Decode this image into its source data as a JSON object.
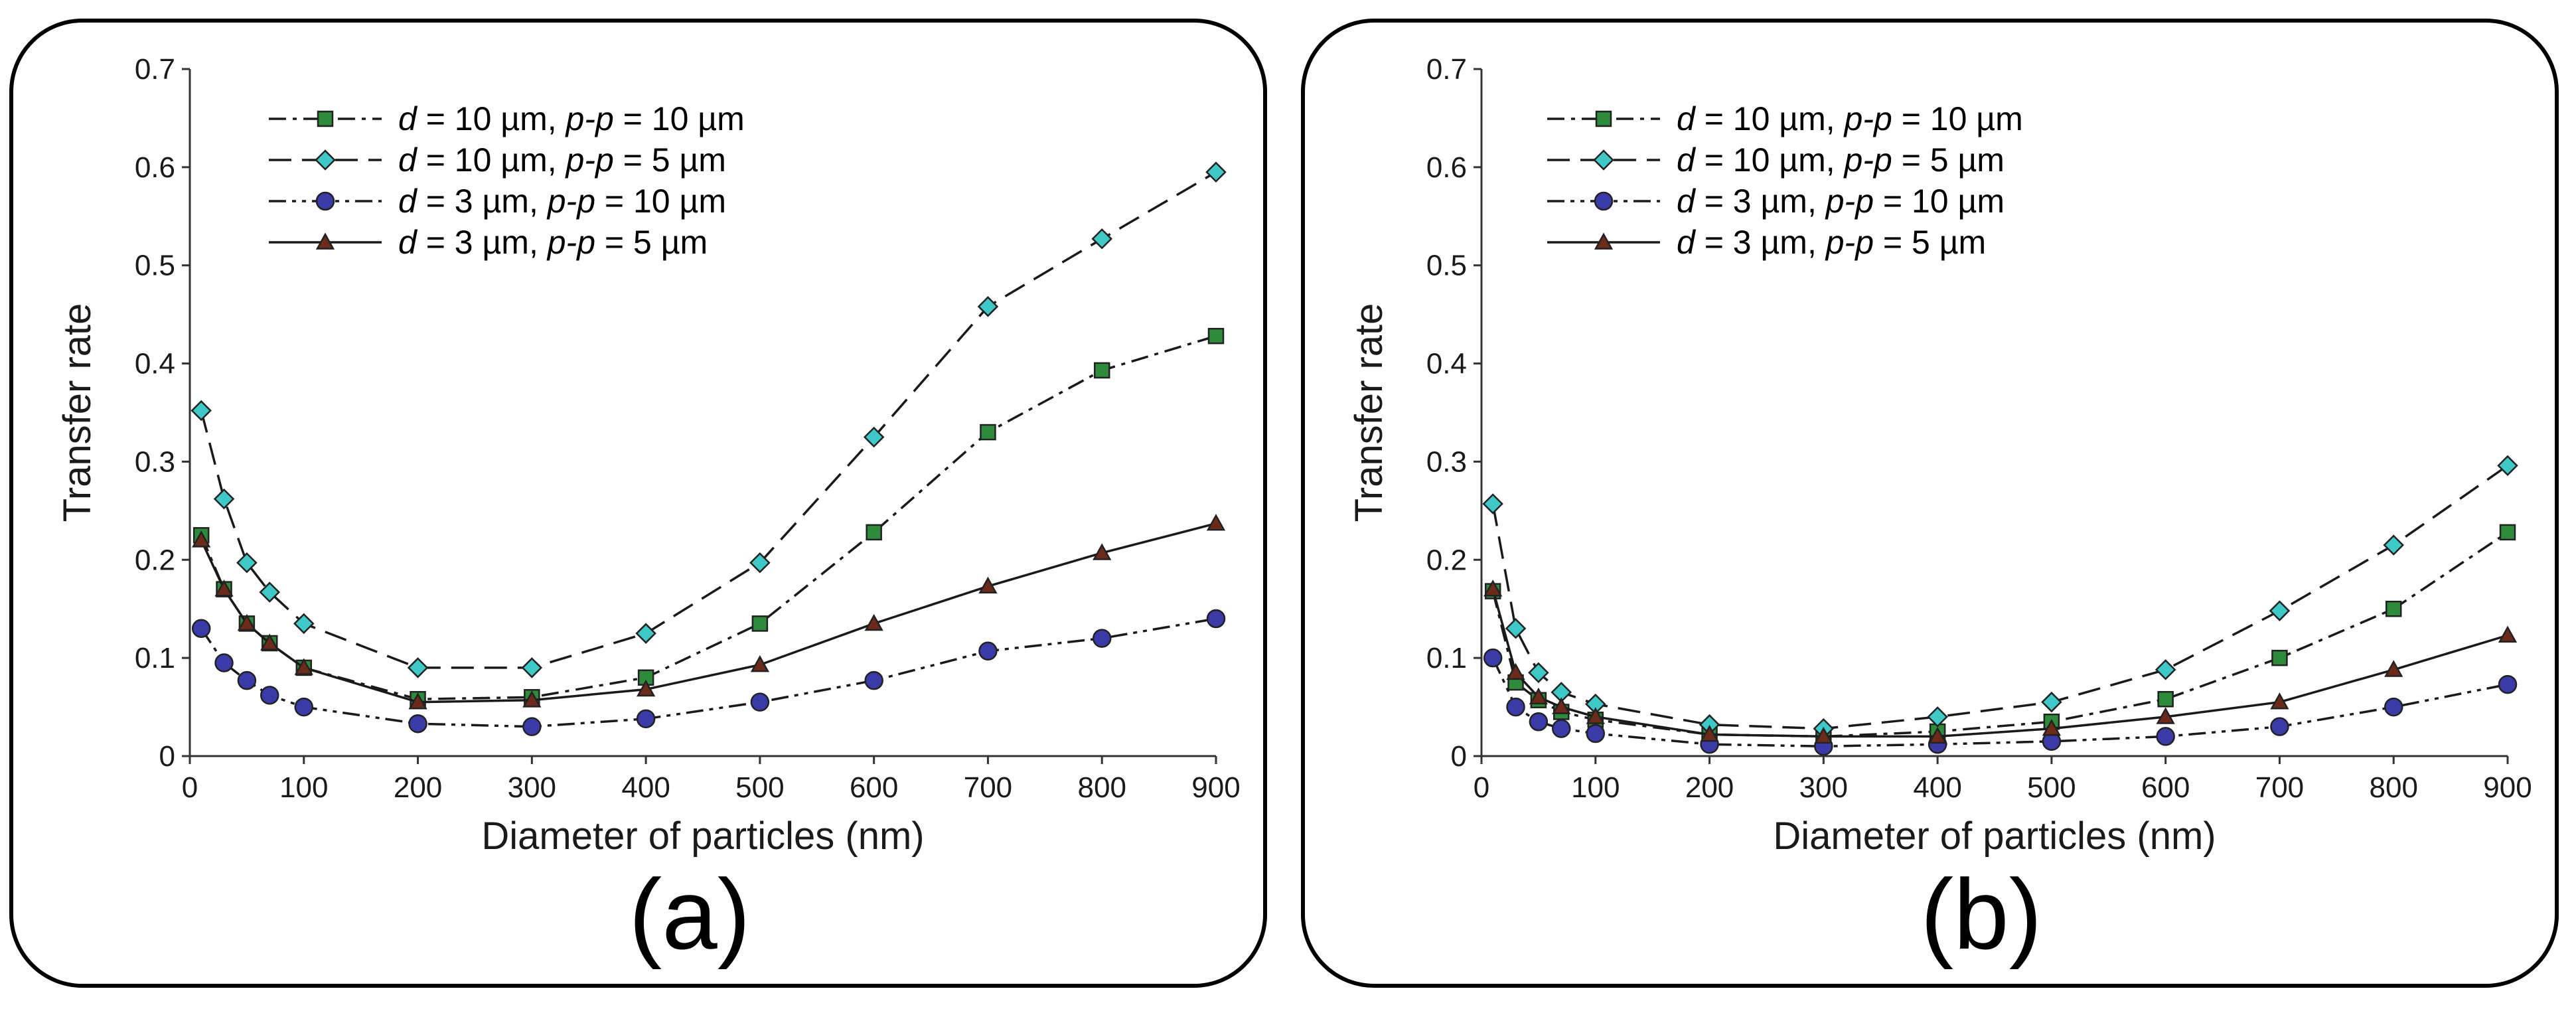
{
  "colors": {
    "square": "#2e8b3c",
    "diamond": "#3ec8c8",
    "circle": "#3a3aa8",
    "triangle": "#6b2a1a",
    "line": "#1a1a1a"
  },
  "chart_data": [
    {
      "type": "line",
      "panel_label": "(a)",
      "xlabel": "Diameter of particles (nm)",
      "ylabel": "Transfer rate",
      "xlim": [
        0,
        900
      ],
      "ylim": [
        0,
        0.7
      ],
      "xticks": [
        "0",
        "100",
        "200",
        "300",
        "400",
        "500",
        "600",
        "700",
        "800",
        "900"
      ],
      "yticks": [
        "0",
        "0.1",
        "0.2",
        "0.3",
        "0.4",
        "0.5",
        "0.6",
        "0.7"
      ],
      "legend_position": "top-left",
      "x": [
        10,
        30,
        50,
        70,
        100,
        200,
        300,
        400,
        500,
        600,
        700,
        800,
        900
      ],
      "series": [
        {
          "name": "d = 10 µm, p-p = 10 µm",
          "d": "10",
          "pp": "10",
          "marker": "square",
          "dash": "dashdot",
          "values": [
            0.225,
            0.17,
            0.135,
            0.115,
            0.09,
            0.058,
            0.06,
            0.08,
            0.135,
            0.228,
            0.33,
            0.393,
            0.428
          ]
        },
        {
          "name": "d = 10 µm, p-p = 5 µm",
          "d": "10",
          "pp": "5",
          "marker": "diamond",
          "dash": "dashed",
          "values": [
            0.352,
            0.262,
            0.197,
            0.167,
            0.135,
            0.09,
            0.09,
            0.125,
            0.197,
            0.325,
            0.458,
            0.527,
            0.595
          ]
        },
        {
          "name": "d = 3 µm, p-p = 10 µm",
          "d": "3",
          "pp": "10",
          "marker": "circle",
          "dash": "dashdotdot",
          "values": [
            0.13,
            0.095,
            0.077,
            0.062,
            0.05,
            0.033,
            0.03,
            0.038,
            0.055,
            0.077,
            0.107,
            0.12,
            0.14
          ]
        },
        {
          "name": "d = 3 µm, p-p = 5 µm",
          "d": "3",
          "pp": "5",
          "marker": "triangle",
          "dash": "solid",
          "values": [
            0.22,
            0.17,
            0.135,
            0.115,
            0.09,
            0.055,
            0.057,
            0.068,
            0.093,
            0.135,
            0.173,
            0.207,
            0.237
          ]
        }
      ]
    },
    {
      "type": "line",
      "panel_label": "(b)",
      "xlabel": "Diameter of particles (nm)",
      "ylabel": "Transfer rate",
      "xlim": [
        0,
        900
      ],
      "ylim": [
        0,
        0.7
      ],
      "xticks": [
        "0",
        "100",
        "200",
        "300",
        "400",
        "500",
        "600",
        "700",
        "800",
        "900"
      ],
      "yticks": [
        "0",
        "0.1",
        "0.2",
        "0.3",
        "0.4",
        "0.5",
        "0.6",
        "0.7"
      ],
      "legend_position": "top-left",
      "x": [
        10,
        30,
        50,
        70,
        100,
        200,
        300,
        400,
        500,
        600,
        700,
        800,
        900
      ],
      "series": [
        {
          "name": "d = 10 µm, p-p = 10 µm",
          "d": "10",
          "pp": "10",
          "marker": "square",
          "dash": "dashdot",
          "values": [
            0.168,
            0.075,
            0.057,
            0.045,
            0.037,
            0.022,
            0.02,
            0.025,
            0.035,
            0.058,
            0.1,
            0.15,
            0.228
          ]
        },
        {
          "name": "d = 10 µm, p-p = 5 µm",
          "d": "10",
          "pp": "5",
          "marker": "diamond",
          "dash": "dashed",
          "values": [
            0.257,
            0.13,
            0.085,
            0.065,
            0.053,
            0.032,
            0.028,
            0.04,
            0.055,
            0.088,
            0.148,
            0.215,
            0.296
          ]
        },
        {
          "name": "d = 3 µm, p-p = 10 µm",
          "d": "3",
          "pp": "10",
          "marker": "circle",
          "dash": "dashdotdot",
          "values": [
            0.1,
            0.05,
            0.035,
            0.028,
            0.023,
            0.012,
            0.01,
            0.012,
            0.015,
            0.02,
            0.03,
            0.05,
            0.073
          ]
        },
        {
          "name": "d = 3 µm, p-p = 5 µm",
          "d": "3",
          "pp": "5",
          "marker": "triangle",
          "dash": "solid",
          "values": [
            0.17,
            0.085,
            0.06,
            0.05,
            0.04,
            0.022,
            0.02,
            0.02,
            0.028,
            0.04,
            0.055,
            0.088,
            0.123
          ]
        }
      ]
    }
  ]
}
